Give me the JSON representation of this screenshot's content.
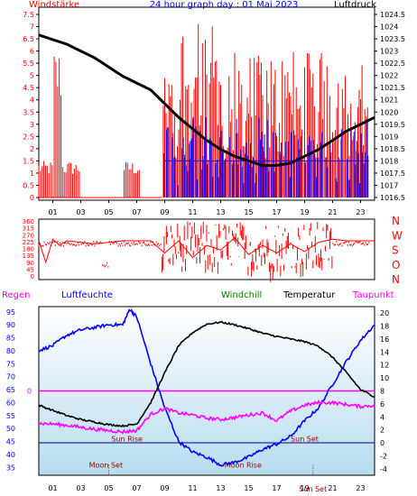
{
  "chart_data": [
    {
      "type": "line",
      "title": "24 hour graph day : 01 Mai 2023",
      "left_axis_label": "Windstärke",
      "right_axis_label": "Luftdruck",
      "x_tick_labels": [
        "01",
        "03",
        "05",
        "07",
        "09",
        "11",
        "13",
        "15",
        "17",
        "19",
        "21",
        "23"
      ],
      "left_ticks": [
        "0",
        "0.5",
        "1",
        "1.5",
        "2",
        "2.5",
        "3",
        "3.5",
        "4",
        "4.5",
        "5",
        "5.5",
        "6",
        "6.5",
        "7",
        "7.5"
      ],
      "right_ticks": [
        "1016.5",
        "1017",
        "1017.5",
        "1018",
        "1018.5",
        "1019",
        "1019.5",
        "1020",
        "1021",
        "1021.5",
        "1022",
        "1022.5",
        "1023",
        "1023.5",
        "1024",
        "1024.5"
      ],
      "ylim_left": [
        0,
        7.5
      ],
      "ylim_right": [
        1016.5,
        1024.5
      ],
      "series": [
        {
          "name": "Luftdruck",
          "color": "#000000",
          "x": [
            0,
            1,
            2,
            3,
            4,
            5,
            6,
            7,
            8,
            9,
            10,
            11,
            12,
            13,
            14,
            15,
            16,
            17,
            18,
            19,
            20,
            21,
            22,
            23,
            24
          ],
          "values": [
            1023.6,
            1023.4,
            1023.2,
            1022.9,
            1022.6,
            1022.2,
            1021.8,
            1021.5,
            1021.2,
            1020.6,
            1020.0,
            1019.5,
            1019.0,
            1018.6,
            1018.3,
            1018.1,
            1017.9,
            1017.9,
            1018.0,
            1018.3,
            1018.6,
            1019.0,
            1019.4,
            1019.7,
            1020.0
          ]
        }
      ]
    },
    {
      "type": "line",
      "left_ticks": [
        "0",
        "45",
        "90",
        "135",
        "180",
        "225",
        "270",
        "315",
        "360"
      ],
      "right_labels": [
        "N",
        "W",
        "S",
        "O",
        "N"
      ],
      "ylim": [
        0,
        360
      ],
      "series": [
        {
          "name": "Windrichtung",
          "color": "#ff0000",
          "x": [
            0,
            0.5,
            1,
            1.5,
            2,
            3,
            4,
            5,
            6,
            7,
            8,
            9,
            10,
            11,
            12,
            13,
            14,
            15,
            16,
            17,
            18,
            19,
            20,
            21,
            22,
            23,
            24
          ],
          "values": [
            230,
            90,
            240,
            200,
            230,
            220,
            210,
            220,
            230,
            230,
            230,
            150,
            230,
            120,
            200,
            170,
            250,
            140,
            200,
            150,
            210,
            160,
            220,
            240,
            230,
            230,
            230
          ]
        }
      ]
    },
    {
      "type": "line",
      "legend": [
        "Regen",
        "Luftfeuchte",
        "Windchill",
        "Temperatur",
        "Taupunkt"
      ],
      "left_ticks": [
        "35",
        "40",
        "45",
        "50",
        "55",
        "60",
        "65",
        "70",
        "75",
        "80",
        "85",
        "90",
        "95"
      ],
      "right_ticks": [
        "-4",
        "-2",
        "0",
        "2",
        "4",
        "6",
        "8",
        "10",
        "12",
        "14",
        "16",
        "18",
        "20"
      ],
      "rain_tick": "0",
      "ylim_left": [
        32,
        97
      ],
      "ylim_right": [
        -5,
        21
      ],
      "annotations": [
        "Sun Rise",
        "Sun Set",
        "Moon Set",
        "Moon Rise",
        "Sun Set"
      ],
      "series": [
        {
          "name": "Luftfeuchte",
          "color": "#0000ff",
          "x": [
            0,
            1,
            2,
            3,
            4,
            5,
            6,
            6.5,
            7,
            8,
            9,
            10,
            11,
            12,
            13,
            14,
            15,
            16,
            17,
            18,
            19,
            20,
            21,
            22,
            23,
            24
          ],
          "values": [
            80,
            82,
            86,
            88,
            89,
            90,
            90,
            96,
            93,
            75,
            58,
            45,
            41,
            39,
            36,
            37,
            39,
            42,
            44,
            47,
            53,
            58,
            67,
            76,
            84,
            90
          ]
        },
        {
          "name": "Temperatur",
          "color": "#000000",
          "x": [
            0,
            1,
            2,
            3,
            4,
            5,
            6,
            7,
            8,
            9,
            10,
            11,
            12,
            13,
            14,
            15,
            16,
            17,
            18,
            19,
            20,
            21,
            22,
            23,
            24
          ],
          "values": [
            5.8,
            5.0,
            4.2,
            3.6,
            3.2,
            2.8,
            2.6,
            2.9,
            6.2,
            10.8,
            15.0,
            17.0,
            18.3,
            18.6,
            18.2,
            17.6,
            16.9,
            16.4,
            16.0,
            15.6,
            14.9,
            13.2,
            10.8,
            8.2,
            7.1
          ]
        },
        {
          "name": "Taupunkt",
          "color": "#ff00ff",
          "x": [
            0,
            1,
            2,
            3,
            4,
            5,
            6,
            7,
            8,
            9,
            10,
            11,
            12,
            13,
            14,
            15,
            16,
            17,
            18,
            19,
            20,
            21,
            22,
            23,
            24
          ],
          "values": [
            3.0,
            2.9,
            2.7,
            2.4,
            2.1,
            1.9,
            1.7,
            1.9,
            4.4,
            5.3,
            4.6,
            4.3,
            3.8,
            3.6,
            3.9,
            4.3,
            4.6,
            3.4,
            4.9,
            5.8,
            6.2,
            6.2,
            5.9,
            5.6,
            5.8
          ]
        }
      ]
    }
  ]
}
